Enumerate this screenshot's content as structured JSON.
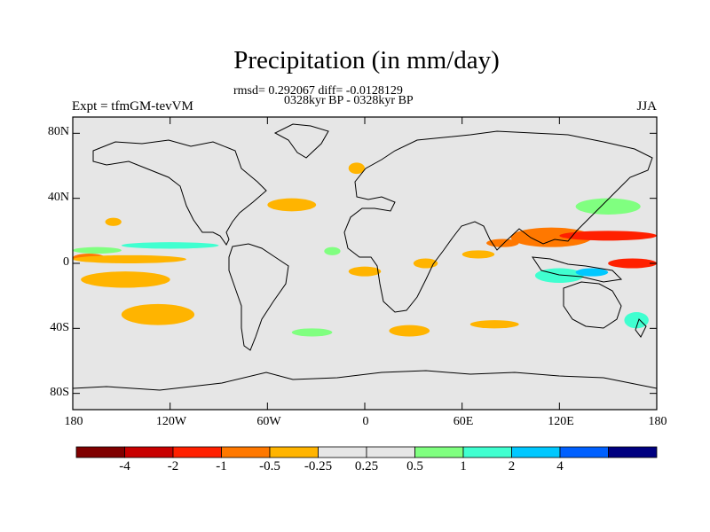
{
  "title": "Precipitation (in mm/day)",
  "stats_line": "rmsd= 0.292067 diff= -0.0128129",
  "period_line": "0328kyr BP - 0328kyr BP",
  "left_label": "Expt = tfmGM-tevVM",
  "right_label": "JJA",
  "lat_ticks": [
    "80N",
    "40N",
    "0",
    "40S",
    "80S"
  ],
  "lon_ticks": [
    "180",
    "120W",
    "60W",
    "0",
    "60E",
    "120E",
    "180"
  ],
  "colorbar": {
    "colors": [
      "#800000",
      "#c80000",
      "#ff2000",
      "#ff7800",
      "#ffb400",
      "#e6e6e6",
      "#e6e6e6",
      "#80ff80",
      "#40ffd0",
      "#00c8ff",
      "#0060ff",
      "#000080"
    ],
    "labels": [
      "-4",
      "-2",
      "-1",
      "-0.5",
      "-0.25",
      "0.25",
      "0.5",
      "1",
      "2",
      "4"
    ]
  },
  "map": {
    "projection": "cylindrical-equidistant",
    "lon_range": [
      -180,
      180
    ],
    "lat_range": [
      -90,
      90
    ],
    "background_color": "#e6e6e6",
    "anomaly_regions": [
      {
        "lon": [
          -180,
          -160
        ],
        "lat": [
          1,
          6
        ],
        "color": "#ff7800"
      },
      {
        "lon": [
          -180,
          -110
        ],
        "lat": [
          0,
          5
        ],
        "color": "#ffb400"
      },
      {
        "lon": [
          -150,
          -90
        ],
        "lat": [
          9,
          13
        ],
        "color": "#40ffd0"
      },
      {
        "lon": [
          -180,
          -150
        ],
        "lat": [
          6,
          10
        ],
        "color": "#80ff80"
      },
      {
        "lon": [
          -175,
          -120
        ],
        "lat": [
          -15,
          -5
        ],
        "color": "#ffb400"
      },
      {
        "lon": [
          -150,
          -105
        ],
        "lat": [
          -38,
          -25
        ],
        "color": "#ffb400"
      },
      {
        "lon": [
          -60,
          -30
        ],
        "lat": [
          32,
          40
        ],
        "color": "#ffb400"
      },
      {
        "lon": [
          -160,
          -150
        ],
        "lat": [
          23,
          28
        ],
        "color": "#ffb400"
      },
      {
        "lon": [
          -25,
          -15
        ],
        "lat": [
          5,
          10
        ],
        "color": "#80ff80"
      },
      {
        "lon": [
          -10,
          10
        ],
        "lat": [
          -8,
          -2
        ],
        "color": "#ffb400"
      },
      {
        "lon": [
          30,
          45
        ],
        "lat": [
          -3,
          3
        ],
        "color": "#ffb400"
      },
      {
        "lon": [
          60,
          80
        ],
        "lat": [
          3,
          8
        ],
        "color": "#ffb400"
      },
      {
        "lon": [
          75,
          95
        ],
        "lat": [
          10,
          15
        ],
        "color": "#ff7800"
      },
      {
        "lon": [
          90,
          140
        ],
        "lat": [
          10,
          22
        ],
        "color": "#ff7800"
      },
      {
        "lon": [
          120,
          180
        ],
        "lat": [
          14,
          20
        ],
        "color": "#ff2000"
      },
      {
        "lon": [
          130,
          170
        ],
        "lat": [
          30,
          40
        ],
        "color": "#80ff80"
      },
      {
        "lon": [
          105,
          135
        ],
        "lat": [
          -12,
          -3
        ],
        "color": "#40ffd0"
      },
      {
        "lon": [
          130,
          150
        ],
        "lat": [
          -8,
          -3
        ],
        "color": "#00c8ff"
      },
      {
        "lon": [
          150,
          180
        ],
        "lat": [
          -3,
          3
        ],
        "color": "#ff2000"
      },
      {
        "lon": [
          15,
          40
        ],
        "lat": [
          -45,
          -38
        ],
        "color": "#ffb400"
      },
      {
        "lon": [
          65,
          95
        ],
        "lat": [
          -40,
          -35
        ],
        "color": "#ffb400"
      },
      {
        "lon": [
          160,
          175
        ],
        "lat": [
          -40,
          -30
        ],
        "color": "#40ffd0"
      },
      {
        "lon": [
          -45,
          -20
        ],
        "lat": [
          -45,
          -40
        ],
        "color": "#80ff80"
      },
      {
        "lon": [
          -10,
          0
        ],
        "lat": [
          55,
          62
        ],
        "color": "#ffb400"
      }
    ]
  }
}
